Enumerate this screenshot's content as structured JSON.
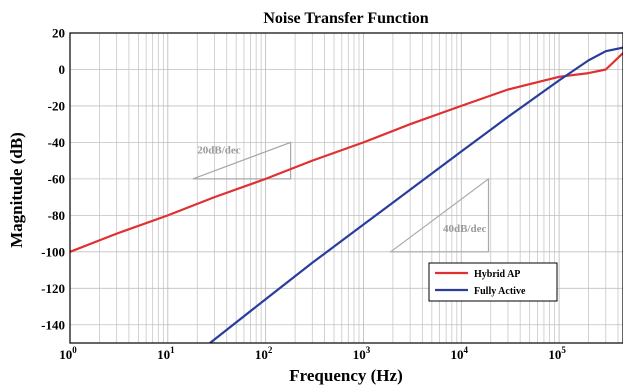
{
  "chart_data": {
    "type": "line",
    "title": "Noise Transfer Function",
    "xlabel": "Frequency (Hz)",
    "ylabel": "Magnitude (dB)",
    "xscale": "log",
    "xlim": [
      1,
      450000
    ],
    "ylim": [
      -150,
      20
    ],
    "grid": true,
    "legend_position": "bottom-right",
    "x_ticks": [
      {
        "base": "10",
        "exp": "0"
      },
      {
        "base": "10",
        "exp": "1"
      },
      {
        "base": "10",
        "exp": "2"
      },
      {
        "base": "10",
        "exp": "3"
      },
      {
        "base": "10",
        "exp": "4"
      },
      {
        "base": "10",
        "exp": "5"
      }
    ],
    "y_ticks": [
      "20",
      "0",
      "-20",
      "-40",
      "-60",
      "-80",
      "-100",
      "-120",
      "-140"
    ],
    "series": [
      {
        "name": "Hybrid AP",
        "color": "#e03030",
        "x": [
          1,
          3,
          10,
          30,
          100,
          300,
          1000,
          3000,
          10000,
          30000,
          100000,
          200000,
          300000,
          450000
        ],
        "y": [
          -100,
          -90,
          -80,
          -70,
          -60,
          -50,
          -40,
          -30,
          -20,
          -11,
          -4,
          -2,
          0,
          9
        ]
      },
      {
        "name": "Fully Active",
        "color": "#2a3d9c",
        "x": [
          27,
          100,
          300,
          1000,
          3000,
          10000,
          30000,
          100000,
          200000,
          300000,
          450000
        ],
        "y": [
          -150,
          -126,
          -106,
          -85,
          -66,
          -45,
          -26,
          -6,
          5,
          10,
          12
        ]
      }
    ],
    "annotations": [
      {
        "text": "20dB/dec",
        "color": "#9a9a9a"
      },
      {
        "text": "40dB/dec",
        "color": "#9a9a9a"
      }
    ]
  }
}
